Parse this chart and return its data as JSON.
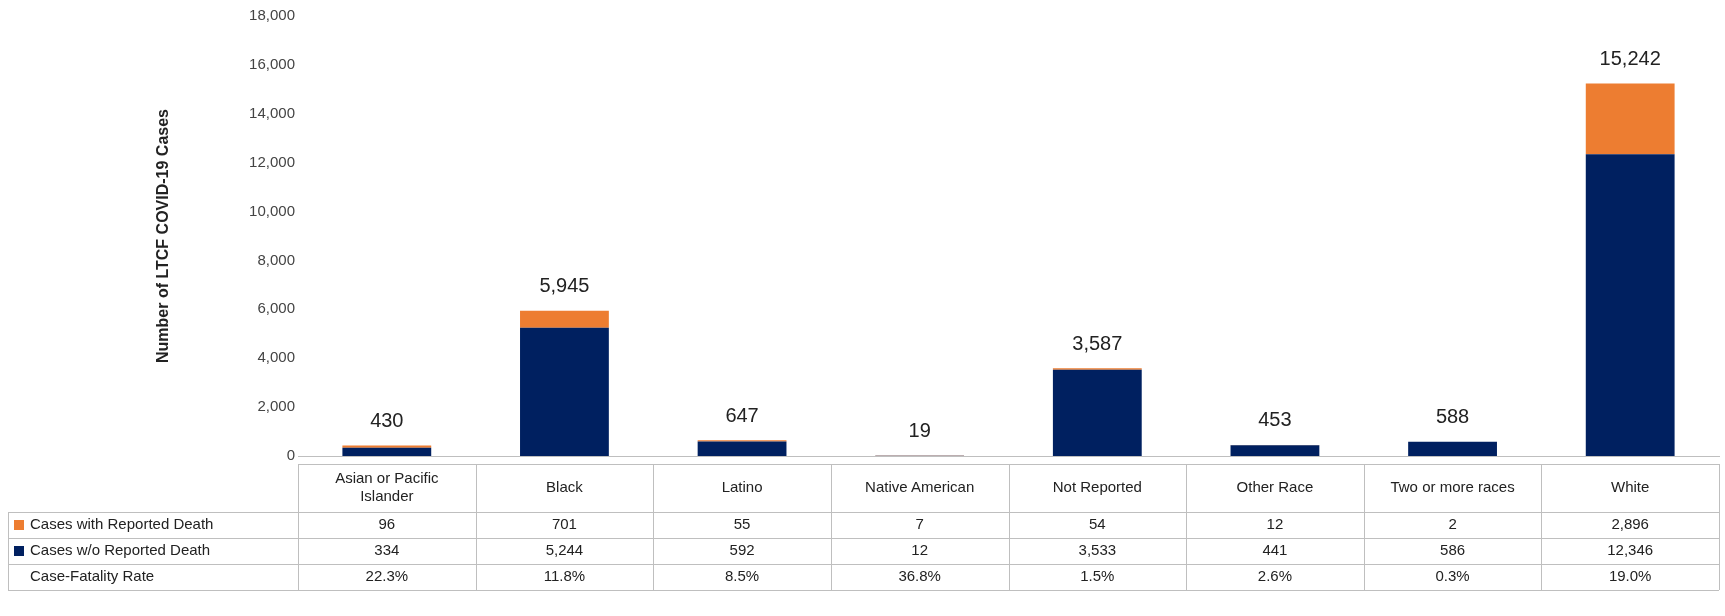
{
  "chart_data": {
    "type": "bar",
    "stacked": true,
    "ylabel": "Number of LTCF COVID-19 Cases",
    "categories": [
      "Asian or Pacific Islander",
      "Black",
      "Latino",
      "Native American",
      "Not Reported",
      "Other Race",
      "Two or more races",
      "White"
    ],
    "series": [
      {
        "name": "Cases w/o Reported Death",
        "color": "#002060",
        "values": [
          334,
          5244,
          592,
          12,
          3533,
          441,
          586,
          12346
        ],
        "value_labels": [
          "334",
          "5,244",
          "592",
          "12",
          "3,533",
          "441",
          "586",
          "12,346"
        ]
      },
      {
        "name": "Cases with Reported Death",
        "color": "#ed7d31",
        "values": [
          96,
          701,
          55,
          7,
          54,
          12,
          2,
          2896
        ],
        "value_labels": [
          "96",
          "701",
          "55",
          "7",
          "54",
          "12",
          "2",
          "2,896"
        ]
      }
    ],
    "totals": [
      "430",
      "5,945",
      "647",
      "19",
      "3,587",
      "453",
      "588",
      "15,242"
    ],
    "ylim": [
      0,
      18000
    ],
    "yticks": [
      {
        "value": 0,
        "label": "0"
      },
      {
        "value": 2000,
        "label": "2,000"
      },
      {
        "value": 4000,
        "label": "4,000"
      },
      {
        "value": 6000,
        "label": "6,000"
      },
      {
        "value": 8000,
        "label": "8,000"
      },
      {
        "value": 10000,
        "label": "10,000"
      },
      {
        "value": 12000,
        "label": "12,000"
      },
      {
        "value": 14000,
        "label": "14,000"
      },
      {
        "value": 16000,
        "label": "16,000"
      },
      {
        "value": 18000,
        "label": "18,000"
      }
    ],
    "grid": false,
    "legend": "bottom",
    "annotations": [
      "Case-Fatality Rate",
      "22.3%",
      "11.8%",
      "8.5%",
      "36.8%",
      "1.5%",
      "2.6%",
      "0.3%",
      "19.0%"
    ]
  }
}
